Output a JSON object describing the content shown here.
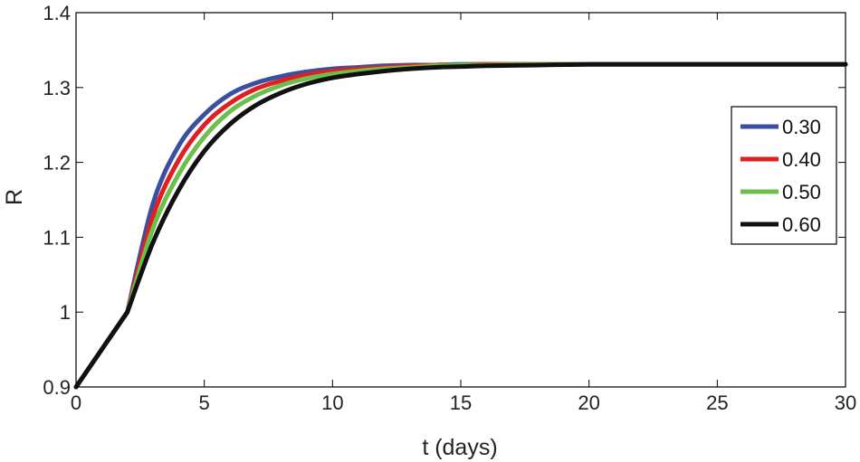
{
  "chart_data": {
    "type": "line",
    "title": "",
    "xlabel": "t (days)",
    "ylabel": "R",
    "xlim": [
      0,
      30
    ],
    "ylim": [
      0.9,
      1.4
    ],
    "xticks": [
      0,
      5,
      10,
      15,
      20,
      25,
      30
    ],
    "xtick_labels": [
      "0",
      "5",
      "10",
      "15",
      "20",
      "25",
      "30"
    ],
    "yticks": [
      0.9,
      1.0,
      1.1,
      1.2,
      1.3,
      1.4
    ],
    "ytick_labels": [
      "0.9",
      "1",
      "1.1",
      "1.2",
      "1.3",
      "1.4"
    ],
    "grid": false,
    "legend_position": "right",
    "series": [
      {
        "name": "0.30",
        "color": "#3a4fa0",
        "x": [
          0,
          2,
          3,
          4,
          5,
          6,
          7,
          8,
          9,
          10,
          11,
          12,
          13,
          14,
          15,
          16,
          18,
          20,
          22,
          25,
          30
        ],
        "y": [
          0.9,
          1.0,
          1.145,
          1.222,
          1.264,
          1.291,
          1.306,
          1.315,
          1.321,
          1.325,
          1.327,
          1.329,
          1.33,
          1.33,
          1.331,
          1.331,
          1.331,
          1.331,
          1.331,
          1.331,
          1.331
        ]
      },
      {
        "name": "0.40",
        "color": "#e02020",
        "x": [
          0,
          2,
          3,
          4,
          5,
          6,
          7,
          8,
          9,
          10,
          11,
          12,
          13,
          14,
          15,
          16,
          18,
          20,
          22,
          25,
          30
        ],
        "y": [
          0.9,
          1.0,
          1.128,
          1.203,
          1.25,
          1.279,
          1.298,
          1.309,
          1.317,
          1.322,
          1.325,
          1.327,
          1.329,
          1.33,
          1.33,
          1.331,
          1.331,
          1.331,
          1.331,
          1.331,
          1.331
        ]
      },
      {
        "name": "0.50",
        "color": "#6cbf4a",
        "x": [
          0,
          2,
          3,
          4,
          5,
          6,
          7,
          8,
          9,
          10,
          11,
          12,
          13,
          14,
          15,
          16,
          18,
          20,
          22,
          25,
          30
        ],
        "y": [
          0.9,
          1.0,
          1.112,
          1.184,
          1.234,
          1.268,
          1.289,
          1.303,
          1.312,
          1.318,
          1.322,
          1.325,
          1.327,
          1.329,
          1.33,
          1.33,
          1.331,
          1.331,
          1.331,
          1.331,
          1.331
        ]
      },
      {
        "name": "0.60",
        "color": "#111111",
        "x": [
          0,
          2,
          3,
          4,
          5,
          6,
          7,
          8,
          9,
          10,
          11,
          12,
          13,
          14,
          15,
          16,
          18,
          20,
          22,
          25,
          30
        ],
        "y": [
          0.9,
          1.0,
          1.093,
          1.163,
          1.215,
          1.251,
          1.276,
          1.293,
          1.305,
          1.313,
          1.318,
          1.322,
          1.325,
          1.327,
          1.328,
          1.329,
          1.33,
          1.331,
          1.331,
          1.331,
          1.331
        ]
      }
    ]
  }
}
